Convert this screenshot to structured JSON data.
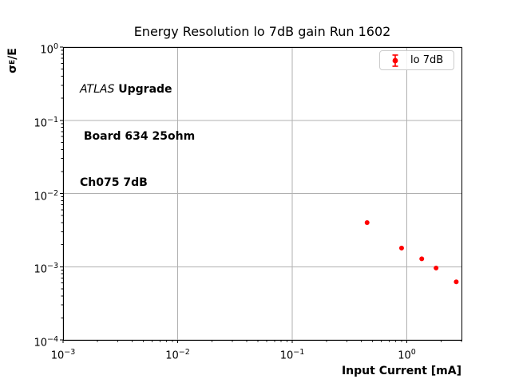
{
  "figure": {
    "title": "Energy Resolution lo 7dB gain Run 1602",
    "xlabel": "Input Current [mA]",
    "ylabel": {
      "sigma": "σ",
      "sub": "E",
      "rest": "/E"
    },
    "annotation": {
      "experiment": "ATLAS",
      "line1_rest": " Upgrade",
      "line2": " Board 634 25ohm",
      "line3": "Ch075 7dB"
    },
    "legend": {
      "label": "lo 7dB"
    }
  },
  "chart_data": {
    "type": "scatter",
    "title": "Energy Resolution lo 7dB gain Run 1602",
    "xlabel": "Input Current [mA]",
    "ylabel": "σE/E",
    "x_scale": "log",
    "y_scale": "log",
    "xlim": [
      0.001,
      3.0
    ],
    "ylim": [
      0.0001,
      1.0
    ],
    "grid": "major-only",
    "legend_position": "upper-right",
    "series": [
      {
        "name": "lo 7dB",
        "color": "#ff0000",
        "marker": "circle-with-errorbars",
        "x": [
          0.45,
          0.9,
          1.35,
          1.8,
          2.7
        ],
        "y": [
          0.004,
          0.0018,
          0.00128,
          0.00096,
          0.00062
        ]
      }
    ],
    "x_tick_exponents": [
      -3,
      -2,
      -1,
      0
    ],
    "y_tick_exponents": [
      0,
      -1,
      -2,
      -3,
      -4
    ],
    "x_tick_labels": [
      "10⁻³",
      "10⁻²",
      "10⁻¹",
      "10⁰"
    ],
    "y_tick_labels": [
      "10⁰",
      "10⁻¹",
      "10⁻²",
      "10⁻³",
      "10⁻⁴"
    ],
    "annotations": [
      "ATLAS Upgrade",
      "Board 634 25ohm",
      "Ch075 7dB"
    ],
    "colors": {
      "marker": "#ff0000",
      "grid": "#b0b0b0",
      "axes": "#000000",
      "legend_border": "#cccccc",
      "background": "#ffffff"
    }
  }
}
